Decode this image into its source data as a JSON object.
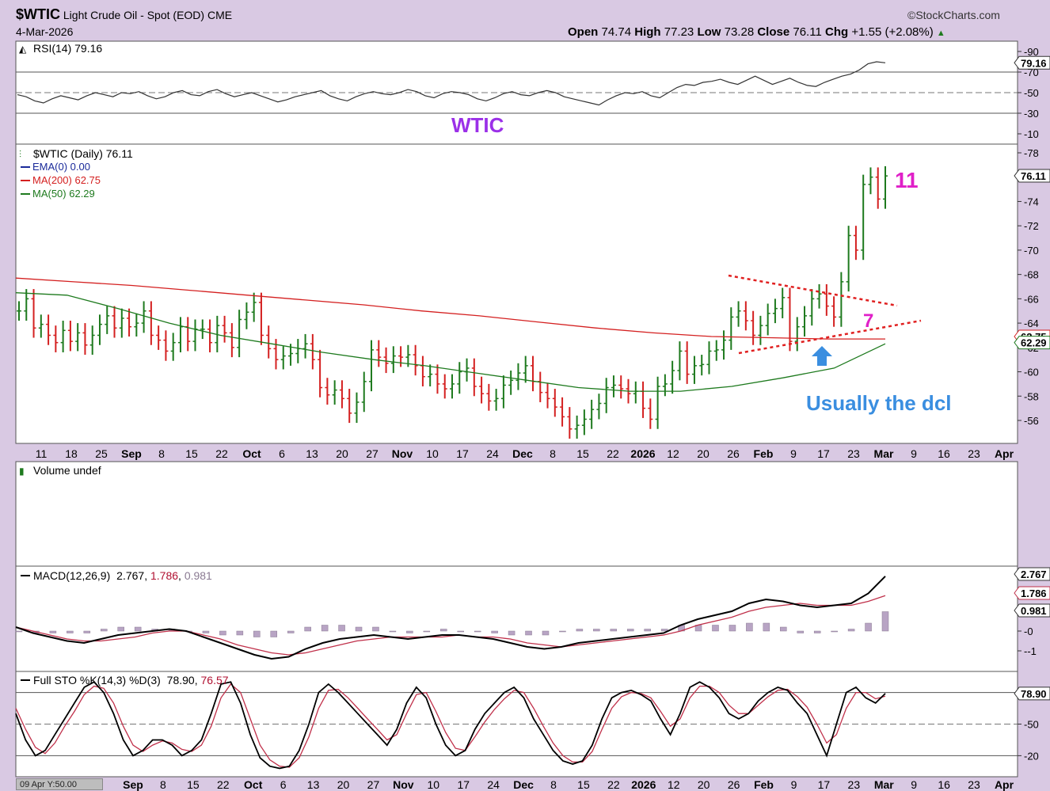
{
  "header": {
    "symbol": "$WTIC",
    "name": "Light Crude Oil - Spot (EOD)",
    "exchange": "CME",
    "date": "4-Mar-2026",
    "brand": "©StockCharts.com",
    "ohlc_line": [
      {
        "label": "Open",
        "value": "74.74"
      },
      {
        "label": "High",
        "value": "77.23"
      },
      {
        "label": "Low",
        "value": "73.28"
      },
      {
        "label": "Close",
        "value": "76.11"
      },
      {
        "label": "Chg",
        "value": "+1.55 (+2.08%)"
      }
    ]
  },
  "annotations": {
    "title": "WTIC",
    "count_11": "11",
    "count_7": "7",
    "note": "Usually the dcl"
  },
  "cursor_readout": "09 Apr Y:50.00",
  "colors": {
    "background": "#d9c9e3",
    "panel": "#ffffff",
    "up_bar": "#1e7a1e",
    "down_bar": "#d42020",
    "ma200": "#d42020",
    "ma50": "#1e7a1e",
    "annotation_purple": "#9b30e8",
    "annotation_magenta": "#e020c8",
    "annotation_blue": "#3a8ee0"
  },
  "chart_data": [
    {
      "type": "line",
      "panel": "RSI",
      "legend": "RSI(14) 79.16",
      "ylim": [
        0,
        100
      ],
      "y_ticks": [
        "90",
        "70",
        "50",
        "30",
        "10"
      ],
      "last_value_label": "79.16",
      "series": [
        {
          "name": "RSI(14)",
          "values": [
            48,
            46,
            42,
            40,
            44,
            47,
            45,
            43,
            47,
            50,
            48,
            46,
            50,
            49,
            51,
            47,
            44,
            46,
            50,
            52,
            48,
            47,
            51,
            53,
            49,
            46,
            48,
            50,
            47,
            44,
            41,
            43,
            46,
            48,
            50,
            52,
            47,
            44,
            42,
            46,
            49,
            51,
            49,
            48,
            50,
            53,
            51,
            47,
            45,
            49,
            51,
            50,
            48,
            44,
            42,
            45,
            49,
            51,
            48,
            47,
            50,
            52,
            50,
            46,
            44,
            42,
            40,
            38,
            43,
            47,
            50,
            49,
            51,
            47,
            45,
            50,
            55,
            58,
            57,
            60,
            61,
            63,
            60,
            58,
            62,
            66,
            62,
            58,
            61,
            64,
            60,
            57,
            56,
            60,
            63,
            66,
            68,
            72,
            78,
            80,
            79
          ]
        }
      ]
    },
    {
      "type": "line",
      "panel": "price",
      "legend": "$WTIC (Daily) 76.11",
      "overlays": [
        {
          "name": "EMA(0)",
          "value": "0.00",
          "color": "#1a2a9a"
        },
        {
          "name": "MA(200)",
          "value": "62.75",
          "color": "#d42020"
        },
        {
          "name": "MA(50)",
          "value": "62.29",
          "color": "#1e7a1e"
        }
      ],
      "ylim": [
        55,
        79
      ],
      "y_ticks": [
        "78",
        "76",
        "74",
        "72",
        "70",
        "68",
        "66",
        "64",
        "62",
        "60",
        "58",
        "56"
      ],
      "last_value_labels": [
        "76.11",
        "62.75",
        "62.29"
      ],
      "x_tick_labels": [
        "11",
        "18",
        "25",
        "Sep",
        "8",
        "15",
        "22",
        "Oct",
        "6",
        "13",
        "20",
        "27",
        "Nov",
        "10",
        "17",
        "24",
        "Dec",
        "8",
        "15",
        "22",
        "2026",
        "12",
        "20",
        "26",
        "Feb",
        "9",
        "17",
        "23",
        "Mar",
        "9",
        "16",
        "23",
        "Apr"
      ],
      "x_tick_labels_bottom": [
        "Sep",
        "8",
        "15",
        "22",
        "Oct",
        "6",
        "13",
        "20",
        "27",
        "Nov",
        "10",
        "17",
        "24",
        "Dec",
        "8",
        "15",
        "22",
        "2026",
        "12",
        "20",
        "26",
        "Feb",
        "9",
        "17",
        "23",
        "Mar",
        "9",
        "16",
        "23",
        "Apr"
      ],
      "series": [
        {
          "name": "$WTIC",
          "values": [
            65.0,
            66.0,
            63.6,
            63.9,
            63.0,
            62.4,
            63.4,
            62.5,
            63.2,
            62.2,
            63.0,
            63.9,
            64.6,
            63.6,
            64.4,
            63.7,
            64.0,
            65.0,
            63.0,
            62.6,
            61.7,
            62.4,
            63.7,
            62.5,
            63.5,
            63.5,
            62.4,
            63.8,
            63.2,
            62.0,
            64.3,
            64.9,
            65.7,
            63.0,
            61.9,
            61.0,
            61.3,
            61.5,
            61.9,
            62.3,
            61.0,
            58.7,
            58.1,
            58.5,
            57.8,
            56.6,
            57.5,
            59.2,
            61.8,
            61.2,
            60.7,
            61.3,
            61.2,
            61.4,
            60.5,
            59.6,
            59.8,
            59.0,
            58.6,
            59.0,
            60.0,
            60.3,
            58.8,
            58.2,
            57.6,
            57.8,
            58.9,
            59.3,
            59.9,
            60.5,
            59.2,
            58.3,
            57.8,
            57.1,
            56.3,
            55.3,
            55.6,
            56.1,
            56.9,
            57.4,
            58.7,
            58.9,
            58.6,
            58.2,
            58.4,
            57.0,
            56.1,
            58.8,
            59.0,
            60.1,
            61.7,
            59.8,
            60.5,
            60.6,
            61.7,
            61.8,
            62.6,
            64.5,
            65.0,
            64.2,
            63.0,
            63.8,
            64.8,
            65.2,
            66.1,
            62.5,
            63.7,
            64.6,
            66.0,
            66.4,
            65.4,
            64.5,
            67.4,
            71.2,
            70.0,
            75.4,
            76.0,
            74.2,
            76.1
          ]
        },
        {
          "name": "MA(200)",
          "values": [
            67.7,
            67.4,
            67.1,
            66.7,
            66.3,
            65.9,
            65.5,
            65.0,
            64.6,
            64.1,
            63.6,
            63.2,
            62.9,
            62.8,
            62.7,
            62.7
          ]
        },
        {
          "name": "MA(50)",
          "values": [
            66.5,
            66.3,
            65.2,
            64.0,
            63.0,
            62.3,
            61.6,
            61.0,
            60.5,
            59.9,
            59.3,
            58.7,
            58.4,
            58.4,
            58.8,
            59.5,
            60.3,
            62.3
          ]
        }
      ]
    },
    {
      "type": "bar",
      "panel": "volume",
      "legend": "Volume undef",
      "values": []
    },
    {
      "type": "line",
      "panel": "MACD",
      "legend": "MACD(12,26,9)",
      "legend_values": [
        "2.767",
        "1.786",
        "0.981"
      ],
      "y_ticks": [
        "2",
        "1",
        "0",
        "-1"
      ],
      "last_value_labels": [
        "2.767",
        "1.786",
        "0.981"
      ],
      "series": [
        {
          "name": "MACD",
          "values": [
            0.2,
            -0.1,
            -0.3,
            -0.5,
            -0.6,
            -0.4,
            -0.2,
            -0.1,
            0.0,
            0.1,
            0.0,
            -0.3,
            -0.6,
            -0.9,
            -1.2,
            -1.4,
            -1.3,
            -0.9,
            -0.6,
            -0.4,
            -0.3,
            -0.2,
            -0.3,
            -0.4,
            -0.3,
            -0.2,
            -0.2,
            -0.3,
            -0.4,
            -0.6,
            -0.8,
            -0.9,
            -0.8,
            -0.6,
            -0.5,
            -0.4,
            -0.3,
            -0.2,
            -0.1,
            0.3,
            0.6,
            0.8,
            1.0,
            1.4,
            1.6,
            1.5,
            1.3,
            1.2,
            1.3,
            1.4,
            1.9,
            2.77
          ]
        },
        {
          "name": "Signal",
          "values": [
            0.2,
            0.0,
            -0.2,
            -0.4,
            -0.5,
            -0.5,
            -0.4,
            -0.3,
            -0.1,
            0.0,
            0.0,
            -0.2,
            -0.4,
            -0.7,
            -0.9,
            -1.1,
            -1.2,
            -1.1,
            -0.9,
            -0.7,
            -0.5,
            -0.4,
            -0.3,
            -0.3,
            -0.3,
            -0.3,
            -0.2,
            -0.3,
            -0.3,
            -0.4,
            -0.6,
            -0.7,
            -0.8,
            -0.7,
            -0.6,
            -0.5,
            -0.4,
            -0.3,
            -0.2,
            0.0,
            0.3,
            0.5,
            0.7,
            1.0,
            1.2,
            1.3,
            1.4,
            1.3,
            1.3,
            1.3,
            1.5,
            1.79
          ]
        },
        {
          "name": "Histogram",
          "values": [
            0.0,
            -0.1,
            -0.1,
            -0.1,
            -0.1,
            0.1,
            0.2,
            0.2,
            0.1,
            0.1,
            0.0,
            -0.1,
            -0.2,
            -0.2,
            -0.3,
            -0.3,
            -0.1,
            0.2,
            0.3,
            0.3,
            0.2,
            0.2,
            0.0,
            -0.1,
            0.0,
            0.1,
            0.0,
            0.0,
            -0.1,
            -0.2,
            -0.2,
            -0.2,
            0.0,
            0.1,
            0.1,
            0.1,
            0.1,
            0.1,
            0.1,
            0.3,
            0.3,
            0.3,
            0.3,
            0.4,
            0.4,
            0.2,
            -0.1,
            -0.1,
            0.0,
            0.1,
            0.4,
            0.98
          ]
        }
      ]
    },
    {
      "type": "line",
      "panel": "STO",
      "legend": "Full STO %K(14,3) %D(3)",
      "legend_values": [
        "78.90",
        "76.57"
      ],
      "ylim": [
        0,
        100
      ],
      "y_ticks": [
        "80",
        "50",
        "20"
      ],
      "last_value_label": "78.90",
      "series": [
        {
          "name": "%K",
          "values": [
            60,
            35,
            20,
            25,
            40,
            55,
            70,
            85,
            90,
            80,
            60,
            35,
            20,
            25,
            35,
            35,
            30,
            20,
            25,
            35,
            60,
            88,
            90,
            70,
            40,
            18,
            10,
            8,
            10,
            25,
            50,
            80,
            88,
            80,
            70,
            60,
            50,
            40,
            30,
            45,
            70,
            85,
            75,
            50,
            30,
            20,
            25,
            45,
            60,
            70,
            80,
            85,
            75,
            55,
            40,
            25,
            15,
            12,
            15,
            30,
            55,
            75,
            80,
            82,
            78,
            72,
            55,
            40,
            60,
            85,
            90,
            85,
            75,
            60,
            55,
            60,
            72,
            80,
            85,
            82,
            70,
            60,
            40,
            20,
            50,
            80,
            85,
            75,
            70,
            79
          ]
        },
        {
          "name": "%D",
          "values": [
            65,
            45,
            28,
            22,
            32,
            48,
            62,
            78,
            86,
            84,
            70,
            48,
            30,
            24,
            30,
            34,
            32,
            26,
            24,
            30,
            48,
            75,
            88,
            80,
            55,
            30,
            16,
            10,
            9,
            18,
            38,
            65,
            82,
            83,
            75,
            65,
            55,
            45,
            35,
            40,
            60,
            78,
            80,
            62,
            42,
            27,
            25,
            38,
            52,
            64,
            74,
            82,
            80,
            65,
            48,
            32,
            20,
            14,
            14,
            24,
            45,
            65,
            76,
            80,
            79,
            75,
            62,
            48,
            55,
            75,
            86,
            86,
            80,
            68,
            60,
            60,
            68,
            76,
            82,
            83,
            76,
            66,
            50,
            32,
            40,
            65,
            80,
            80,
            74,
            76.57
          ]
        }
      ]
    }
  ]
}
